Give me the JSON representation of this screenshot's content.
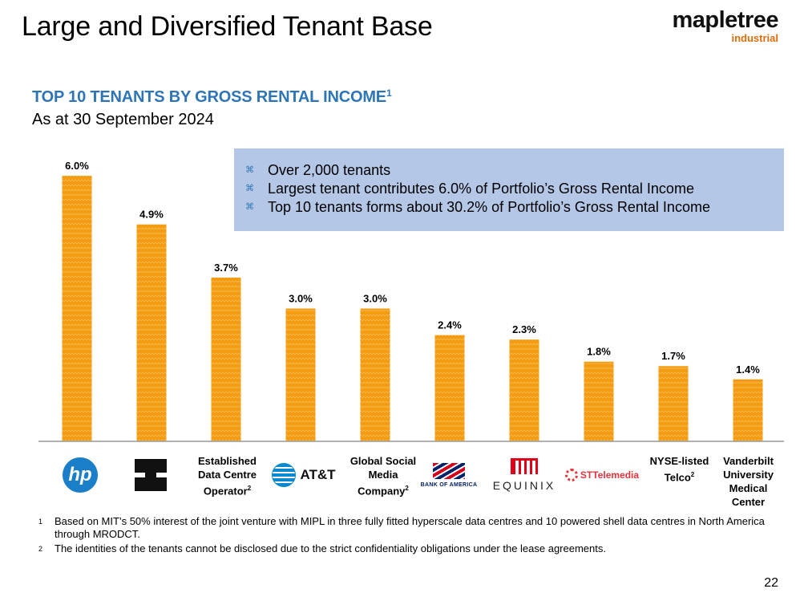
{
  "slide": {
    "title": "Large and Diversified Tenant Base",
    "page_number": "22",
    "logo": {
      "main": "mapletree",
      "sub": "industrial"
    }
  },
  "highlights": [
    "Over 2,000 tenants",
    "Largest tenant contributes 6.0% of Portfolio’s Gross Rental Income",
    "Top 10 tenants forms about 30.2% of Portfolio’s Gross Rental Income"
  ],
  "chart_data": {
    "type": "bar",
    "title": "TOP 10 TENANTS BY GROSS RENTAL INCOME",
    "title_footnote": "1",
    "subtitle": "As at 30 September 2024",
    "values": [
      6.0,
      4.9,
      3.7,
      3.0,
      3.0,
      2.4,
      2.3,
      1.8,
      1.7,
      1.4
    ],
    "value_labels": [
      "6.0%",
      "4.9%",
      "3.7%",
      "3.0%",
      "3.0%",
      "2.4%",
      "2.3%",
      "1.8%",
      "1.7%",
      "1.4%"
    ],
    "ylim": [
      0,
      6.0
    ],
    "bar_color": "#f39c12",
    "categories": [
      {
        "kind": "logo",
        "icon": "hp-logo-icon",
        "text": "hp"
      },
      {
        "kind": "logo",
        "icon": "black-block-logo-icon",
        "text": ""
      },
      {
        "kind": "text",
        "lines": [
          "Established",
          "Data Centre",
          "Operator"
        ],
        "footnote": "2"
      },
      {
        "kind": "logo",
        "icon": "att-logo-icon",
        "text": "AT&T"
      },
      {
        "kind": "text",
        "lines": [
          "Global Social",
          "Media",
          "Company"
        ],
        "footnote": "2"
      },
      {
        "kind": "logo",
        "icon": "bank-of-america-logo-icon",
        "text": "BANK OF AMERICA"
      },
      {
        "kind": "logo",
        "icon": "equinix-logo-icon",
        "text": "EQUINIX"
      },
      {
        "kind": "logo",
        "icon": "st-telemedia-logo-icon",
        "text": "STTelemedia"
      },
      {
        "kind": "text",
        "lines": [
          "NYSE-listed",
          "Telco"
        ],
        "footnote": "2"
      },
      {
        "kind": "text",
        "lines": [
          "Vanderbilt",
          "University",
          "Medical",
          "Center"
        ],
        "footnote": ""
      }
    ]
  },
  "footnotes": [
    {
      "num": "1",
      "text": "Based on MIT’s 50% interest of the joint venture with MIPL in three fully fitted hyperscale data centres and 10 powered shell data centres in North America through MRODCT."
    },
    {
      "num": "2",
      "text": "The identities of the tenants cannot be disclosed due to the strict confidentiality obligations under the lease agreements."
    }
  ]
}
